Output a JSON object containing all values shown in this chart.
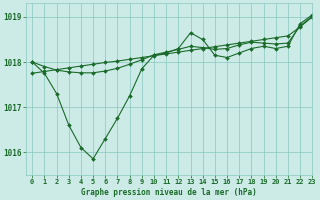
{
  "title": "Graphe pression niveau de la mer (hPa)",
  "bg_color": "#cceae6",
  "grid_color": "#88c8c0",
  "line_color": "#1a6b2a",
  "xlim": [
    -0.5,
    23
  ],
  "ylim": [
    1015.5,
    1019.3
  ],
  "yticks": [
    1016,
    1017,
    1018,
    1019
  ],
  "xticks": [
    0,
    1,
    2,
    3,
    4,
    5,
    6,
    7,
    8,
    9,
    10,
    11,
    12,
    13,
    14,
    15,
    16,
    17,
    18,
    19,
    20,
    21,
    22,
    23
  ],
  "x": [
    0,
    1,
    2,
    3,
    4,
    5,
    6,
    7,
    8,
    9,
    10,
    11,
    12,
    13,
    14,
    15,
    16,
    17,
    18,
    19,
    20,
    21,
    22,
    23
  ],
  "y_zigzag": [
    1018.0,
    1017.75,
    1017.3,
    1016.6,
    1016.1,
    1015.85,
    1016.3,
    1016.75,
    1017.25,
    1017.85,
    1018.15,
    1018.2,
    1018.3,
    1018.65,
    1018.5,
    1018.15,
    1018.1,
    1018.2,
    1018.3,
    1018.35,
    1018.3,
    1018.35,
    1018.85,
    1019.05
  ],
  "y_lower": [
    1017.75,
    1017.79,
    1017.83,
    1017.87,
    1017.91,
    1017.95,
    1017.99,
    1018.02,
    1018.06,
    1018.1,
    1018.14,
    1018.18,
    1018.22,
    1018.26,
    1018.3,
    1018.34,
    1018.38,
    1018.42,
    1018.46,
    1018.5,
    1018.54,
    1018.58,
    1018.78,
    1019.0
  ],
  "y_upper": [
    1018.0,
    1017.9,
    1017.82,
    1017.78,
    1017.76,
    1017.76,
    1017.8,
    1017.86,
    1017.95,
    1018.05,
    1018.16,
    1018.22,
    1018.28,
    1018.35,
    1018.32,
    1018.28,
    1018.3,
    1018.38,
    1018.44,
    1018.42,
    1018.4,
    1018.42,
    1018.8,
    1019.02
  ],
  "marker_size": 2.0,
  "line_width": 0.8,
  "tick_fontsize": 5.0,
  "label_fontsize": 5.5
}
